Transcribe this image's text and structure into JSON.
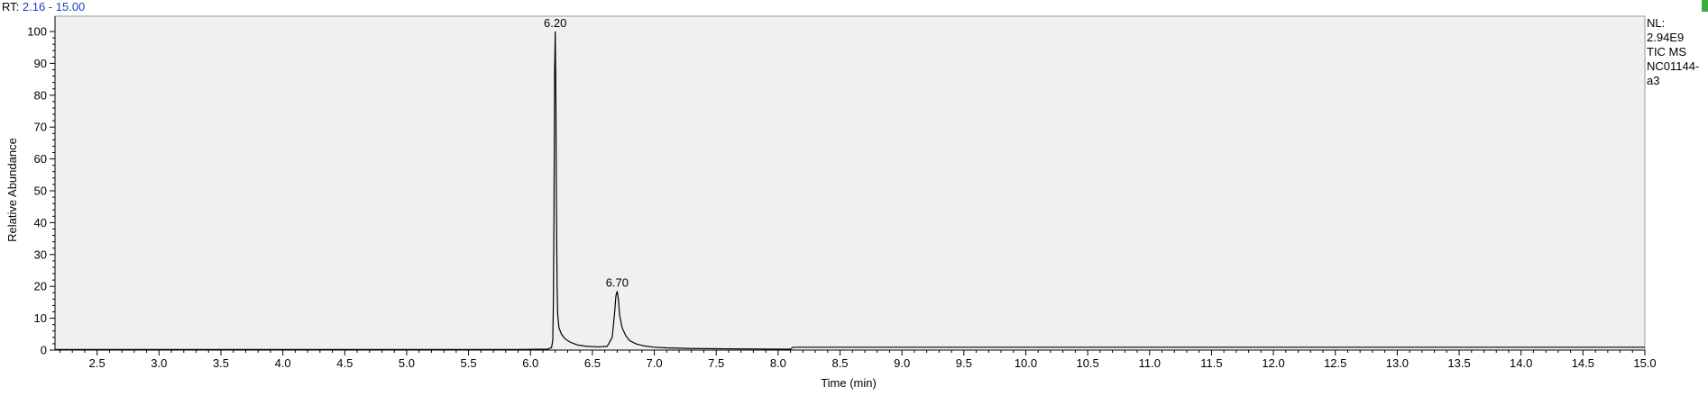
{
  "header": {
    "rt_prefix": "RT:",
    "rt_range": "2.16 - 15.00"
  },
  "info": {
    "nl_label": "NL:",
    "nl_value": "2.94E9",
    "scan_type": "TIC  MS",
    "sample_name_1": "NC01144-",
    "sample_name_2": "a3"
  },
  "colors": {
    "plot_background": "#f0f0f0",
    "trace": "#000000",
    "rt_range_text": "#1f3fbf",
    "corner_marker": "#3caa3c"
  },
  "chart_data": {
    "type": "line",
    "xlabel": "Time (min)",
    "ylabel": "Relative Abundance",
    "xlim": [
      2.16,
      15.0
    ],
    "ylim": [
      0,
      100
    ],
    "x_ticks": [
      "2.5",
      "3.0",
      "3.5",
      "4.0",
      "4.5",
      "5.0",
      "5.5",
      "6.0",
      "6.5",
      "7.0",
      "7.5",
      "8.0",
      "8.5",
      "9.0",
      "9.5",
      "10.0",
      "10.5",
      "11.0",
      "11.5",
      "12.0",
      "12.5",
      "13.0",
      "13.5",
      "14.0",
      "14.5",
      "15.0"
    ],
    "y_ticks": [
      "0",
      "10",
      "20",
      "30",
      "40",
      "50",
      "60",
      "70",
      "80",
      "90",
      "100"
    ],
    "grid": false,
    "series": [
      {
        "x": [
          2.16,
          5.9,
          6.14,
          6.17,
          6.18,
          6.185,
          6.19,
          6.195,
          6.2,
          6.205,
          6.21,
          6.215,
          6.22,
          6.23,
          6.25,
          6.28,
          6.32,
          6.38,
          6.45,
          6.55,
          6.62,
          6.66,
          6.68,
          6.69,
          6.7,
          6.71,
          6.72,
          6.74,
          6.77,
          6.8,
          6.85,
          6.92,
          7.0,
          7.1,
          7.3,
          7.6,
          8.0,
          8.1,
          8.12,
          9.0,
          10.0,
          11.0,
          12.0,
          13.0,
          14.0,
          15.0
        ],
        "y": [
          0.2,
          0.2,
          0.3,
          0.8,
          3,
          15,
          44,
          88,
          100,
          80,
          44,
          20,
          11,
          7,
          5,
          3.5,
          2.5,
          1.6,
          1.2,
          1,
          1.2,
          4,
          12,
          17,
          18.5,
          16,
          11,
          7,
          4.5,
          3,
          2,
          1.3,
          0.9,
          0.7,
          0.5,
          0.4,
          0.3,
          0.3,
          0.9,
          0.9,
          0.9,
          0.9,
          0.9,
          0.9,
          0.9,
          0.9
        ]
      }
    ],
    "annotations": [
      {
        "x": 6.2,
        "y": 100,
        "text": "6.20"
      },
      {
        "x": 6.7,
        "y": 18.5,
        "text": "6.70"
      }
    ]
  }
}
